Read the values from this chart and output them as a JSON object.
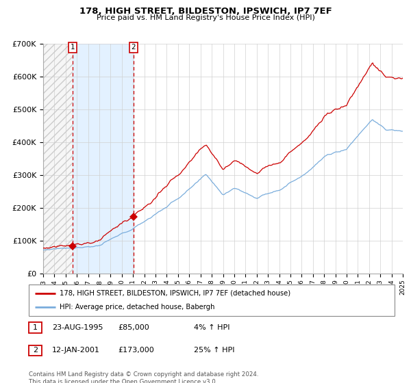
{
  "title": "178, HIGH STREET, BILDESTON, IPSWICH, IP7 7EF",
  "subtitle": "Price paid vs. HM Land Registry's House Price Index (HPI)",
  "legend_line1": "178, HIGH STREET, BILDESTON, IPSWICH, IP7 7EF (detached house)",
  "legend_line2": "HPI: Average price, detached house, Babergh",
  "annotation1_date": "23-AUG-1995",
  "annotation1_price": "£85,000",
  "annotation1_hpi": "4% ↑ HPI",
  "annotation2_date": "12-JAN-2001",
  "annotation2_price": "£173,000",
  "annotation2_hpi": "25% ↑ HPI",
  "footnote": "Contains HM Land Registry data © Crown copyright and database right 2024.\nThis data is licensed under the Open Government Licence v3.0.",
  "sale1_year": 1995.64,
  "sale1_value": 85000,
  "sale2_year": 2001.04,
  "sale2_value": 173000,
  "hpi_color": "#7aaddc",
  "price_color": "#cc0000",
  "sale_region_color": "#ddeeff",
  "ylim_max": 700000,
  "start_year": 1993,
  "end_year": 2025
}
